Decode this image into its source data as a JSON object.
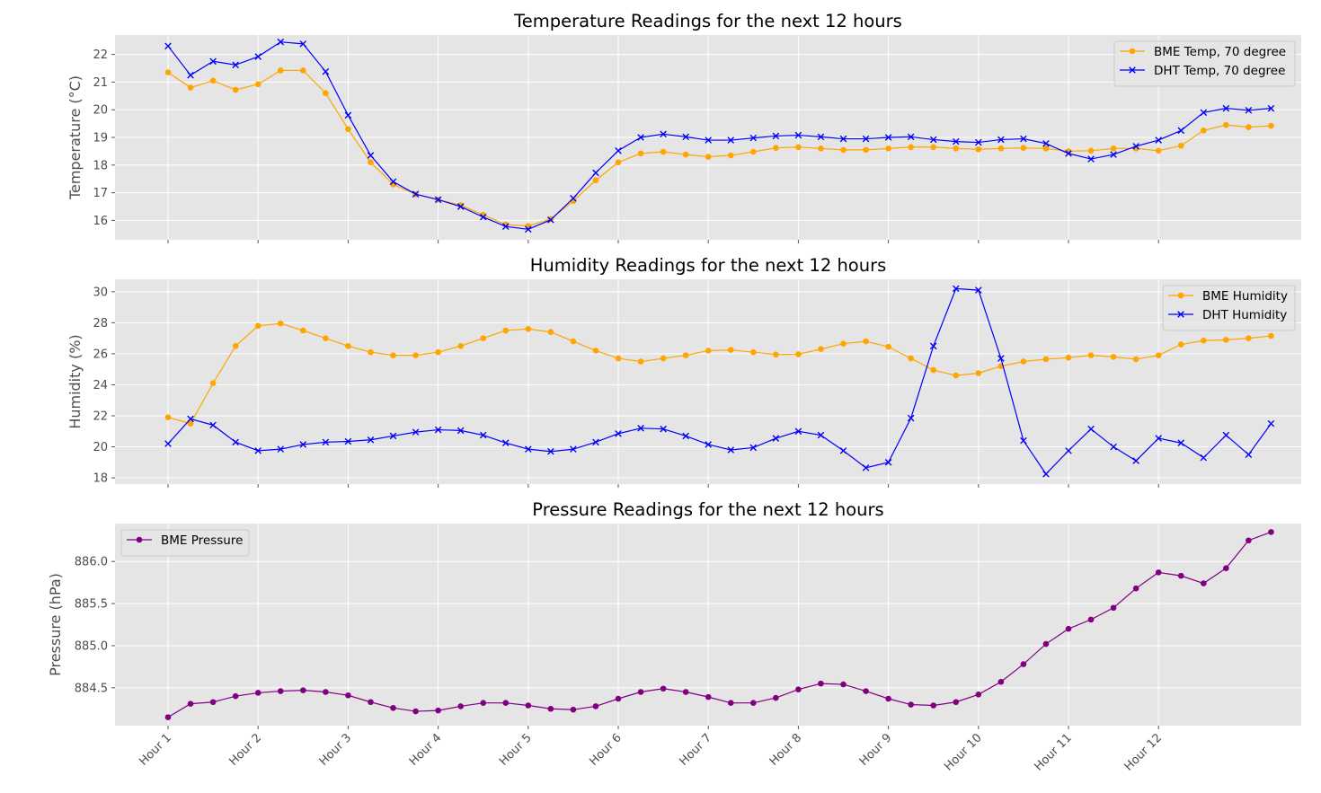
{
  "chart_data": [
    {
      "type": "line",
      "title": "Temperature Readings for the next 12 hours",
      "ylabel": "Temperature (°C)",
      "ylim": [
        15.3,
        22.7
      ],
      "yticks": [
        16,
        17,
        18,
        19,
        20,
        21,
        22
      ],
      "grid": true,
      "legend": "top-right",
      "series": [
        {
          "name": "BME Temp, 70 degree",
          "color": "#ffa500",
          "marker": "circle",
          "values": [
            21.35,
            20.8,
            21.05,
            20.72,
            20.92,
            21.42,
            21.42,
            20.6,
            19.3,
            18.1,
            17.3,
            16.95,
            16.75,
            16.55,
            16.2,
            15.85,
            15.8,
            16.05,
            16.7,
            17.45,
            18.1,
            18.42,
            18.48,
            18.38,
            18.3,
            18.35,
            18.48,
            18.62,
            18.65,
            18.6,
            18.55,
            18.55,
            18.6,
            18.65,
            18.65,
            18.6,
            18.57,
            18.6,
            18.62,
            18.6,
            18.5,
            18.52,
            18.6,
            18.6,
            18.52,
            18.7,
            19.25,
            19.45,
            19.37,
            19.42
          ]
        },
        {
          "name": "DHT Temp, 70 degree",
          "color": "#0000ff",
          "marker": "x",
          "values": [
            22.3,
            21.25,
            21.75,
            21.62,
            21.92,
            22.45,
            22.38,
            21.38,
            19.8,
            18.35,
            17.4,
            16.95,
            16.75,
            16.5,
            16.12,
            15.78,
            15.68,
            16.02,
            16.8,
            17.72,
            18.52,
            19.0,
            19.12,
            19.02,
            18.9,
            18.9,
            18.98,
            19.05,
            19.08,
            19.02,
            18.95,
            18.95,
            19.0,
            19.02,
            18.92,
            18.85,
            18.82,
            18.92,
            18.95,
            18.78,
            18.42,
            18.22,
            18.38,
            18.68,
            18.9,
            19.25,
            19.9,
            20.05,
            19.98,
            20.05
          ]
        }
      ]
    },
    {
      "type": "line",
      "title": "Humidity Readings for the next 12 hours",
      "ylabel": "Humidity (%)",
      "ylim": [
        17.6,
        30.8
      ],
      "yticks": [
        18,
        20,
        22,
        24,
        26,
        28,
        30
      ],
      "grid": true,
      "legend": "top-right",
      "series": [
        {
          "name": "BME Humidity",
          "color": "#ffa500",
          "marker": "circle",
          "values": [
            21.9,
            21.5,
            24.1,
            26.5,
            27.8,
            27.95,
            27.5,
            27.0,
            26.5,
            26.1,
            25.9,
            25.9,
            26.1,
            26.5,
            27.0,
            27.5,
            27.6,
            27.4,
            26.8,
            26.2,
            25.7,
            25.5,
            25.7,
            25.9,
            26.2,
            26.25,
            26.1,
            25.95,
            25.97,
            26.3,
            26.65,
            26.8,
            26.45,
            25.7,
            24.95,
            24.6,
            24.75,
            25.2,
            25.5,
            25.65,
            25.75,
            25.9,
            25.8,
            25.65,
            25.9,
            26.6,
            26.85,
            26.9,
            27.0,
            27.15
          ]
        },
        {
          "name": "DHT Humidity",
          "color": "#0000ff",
          "marker": "x",
          "values": [
            20.2,
            21.8,
            21.4,
            20.3,
            19.75,
            19.85,
            20.15,
            20.3,
            20.35,
            20.45,
            20.7,
            20.95,
            21.1,
            21.05,
            20.75,
            20.25,
            19.85,
            19.7,
            19.85,
            20.3,
            20.85,
            21.2,
            21.15,
            20.7,
            20.15,
            19.8,
            19.95,
            20.55,
            21.0,
            20.75,
            19.75,
            18.65,
            19.0,
            21.85,
            26.5,
            30.2,
            30.1,
            25.7,
            20.4,
            18.25,
            19.75,
            21.15,
            20.0,
            19.1,
            20.55,
            20.25,
            19.3,
            20.75,
            19.5,
            21.5
          ]
        }
      ]
    },
    {
      "type": "line",
      "title": "Pressure Readings for the next 12 hours",
      "ylabel": "Pressure (hPa)",
      "ylim": [
        884.05,
        886.45
      ],
      "yticks": [
        884.5,
        885.0,
        885.5,
        886.0
      ],
      "grid": true,
      "legend": "top-left",
      "series": [
        {
          "name": "BME Pressure",
          "color": "#800080",
          "marker": "circle",
          "values": [
            884.15,
            884.31,
            884.33,
            884.4,
            884.44,
            884.46,
            884.47,
            884.45,
            884.41,
            884.33,
            884.26,
            884.22,
            884.23,
            884.28,
            884.32,
            884.32,
            884.29,
            884.25,
            884.24,
            884.28,
            884.37,
            884.45,
            884.49,
            884.45,
            884.39,
            884.32,
            884.32,
            884.38,
            884.48,
            884.55,
            884.54,
            884.46,
            884.37,
            884.3,
            884.29,
            884.33,
            884.42,
            884.57,
            884.78,
            885.02,
            885.2,
            885.31,
            885.45,
            885.68,
            885.87,
            885.83,
            885.74,
            885.92,
            886.25,
            886.35
          ]
        }
      ]
    }
  ],
  "x_tick_labels": [
    "Hour 1",
    "Hour 2",
    "Hour 3",
    "Hour 4",
    "Hour 5",
    "Hour 6",
    "Hour 7",
    "Hour 8",
    "Hour 9",
    "Hour 10",
    "Hour 11",
    "Hour 12"
  ]
}
